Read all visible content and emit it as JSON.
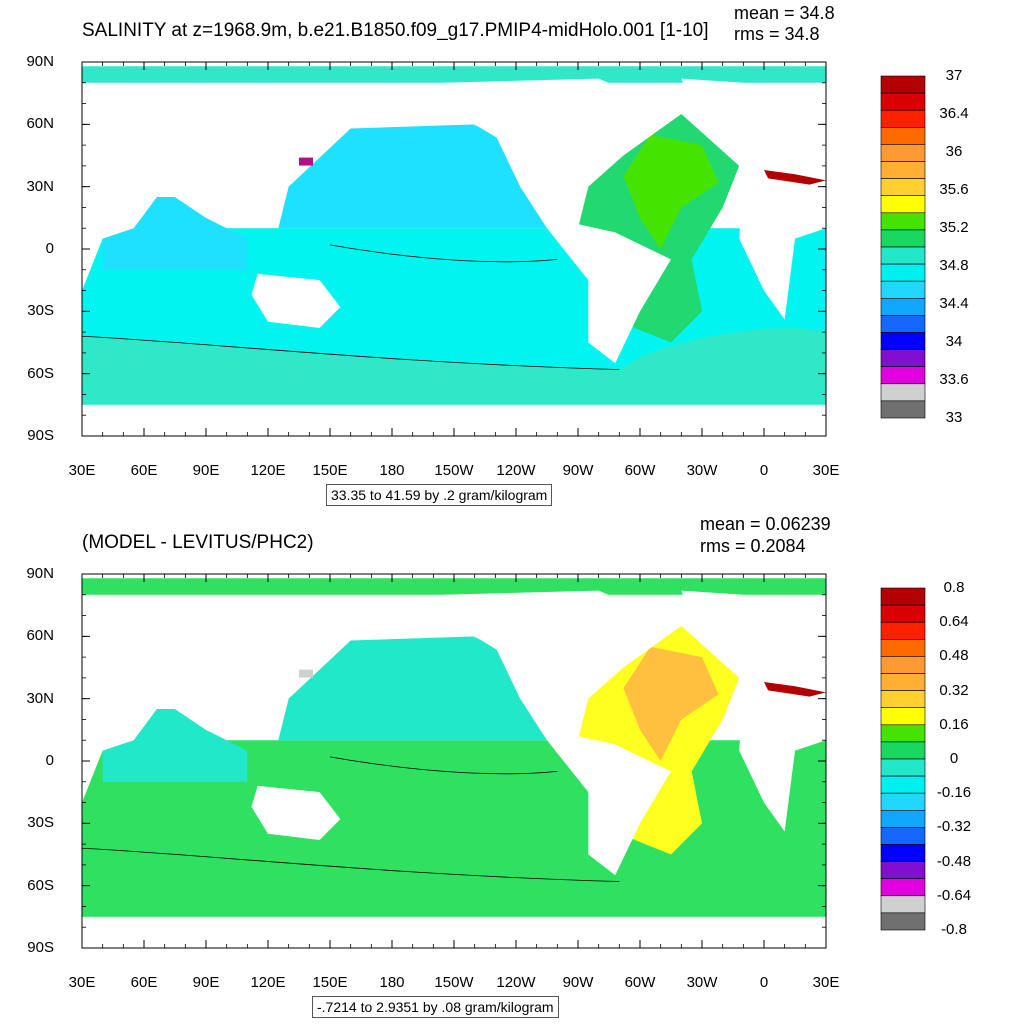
{
  "panels": [
    {
      "title": "SALINITY at z=1968.9m, b.e21.B1850.f09_g17.PMIP4-midHolo.001 [1-10]",
      "mean_label": "mean = 34.8",
      "rms_label": "rms = 34.8",
      "range_text": "33.35 to 41.59 by .2 gram/kilogram",
      "lat_labels": [
        "90N",
        "60N",
        "30N",
        "0",
        "30S",
        "60S",
        "90S"
      ],
      "lon_labels": [
        "30E",
        "60E",
        "90E",
        "120E",
        "150E",
        "180",
        "150W",
        "120W",
        "90W",
        "60W",
        "30W",
        "0",
        "30E"
      ],
      "colorbar": {
        "labels": [
          "37",
          "36.4",
          "36",
          "35.6",
          "35.2",
          "34.8",
          "34.4",
          "34",
          "33.6",
          "33"
        ],
        "colors": [
          "#b40000",
          "#d80000",
          "#ff2000",
          "#ff6a00",
          "#ff9a33",
          "#ffb030",
          "#ffd030",
          "#ffff00",
          "#44e400",
          "#18d860",
          "#20e8c8",
          "#00f0f0",
          "#20d8ff",
          "#10a8ff",
          "#1468ff",
          "#0000ff",
          "#8010d0",
          "#e000e0",
          "#d0d0d0",
          "#707070"
        ]
      },
      "fields": {
        "background": "#1ee0ff",
        "southern": "#00f5f0",
        "antarctic_band": "#30e8c8",
        "atlantic": "#22d870",
        "atlantic_core": "#44e400",
        "med": "#b40000",
        "pacific_north": "#1ee0ff",
        "arctic": "#30e8c8",
        "black_sea": "#b0108c"
      }
    },
    {
      "title": "(MODEL - LEVITUS/PHC2)",
      "mean_label": "mean = 0.06239",
      "rms_label": "rms = 0.2084",
      "range_text": "-.7214 to 2.9351 by .08 gram/kilogram",
      "lat_labels": [
        "90N",
        "60N",
        "30N",
        "0",
        "30S",
        "60S",
        "90S"
      ],
      "lon_labels": [
        "30E",
        "60E",
        "90E",
        "120E",
        "150E",
        "180",
        "150W",
        "120W",
        "90W",
        "60W",
        "30W",
        "0",
        "30E"
      ],
      "colorbar": {
        "labels": [
          "0.8",
          "0.64",
          "0.48",
          "0.32",
          "0.16",
          "0",
          "-0.16",
          "-0.32",
          "-0.48",
          "-0.64",
          "-0.8"
        ],
        "colors": [
          "#b40000",
          "#d80000",
          "#ff2000",
          "#ff6a00",
          "#ff9a33",
          "#ffb030",
          "#ffd030",
          "#ffff00",
          "#44e400",
          "#18d860",
          "#20e8c8",
          "#00f0f0",
          "#20d8ff",
          "#10a8ff",
          "#1468ff",
          "#0000ff",
          "#8010d0",
          "#e000e0",
          "#d0d0d0",
          "#707070"
        ]
      },
      "fields": {
        "background": "#20e8c8",
        "southern": "#30e060",
        "antarctic_band": "#30e060",
        "atlantic": "#ffff20",
        "atlantic_core": "#ffc040",
        "med": "#b40000",
        "pacific_north": "#20e8c8",
        "arctic": "#30e060",
        "black_sea": "#d0d0d0"
      }
    }
  ]
}
